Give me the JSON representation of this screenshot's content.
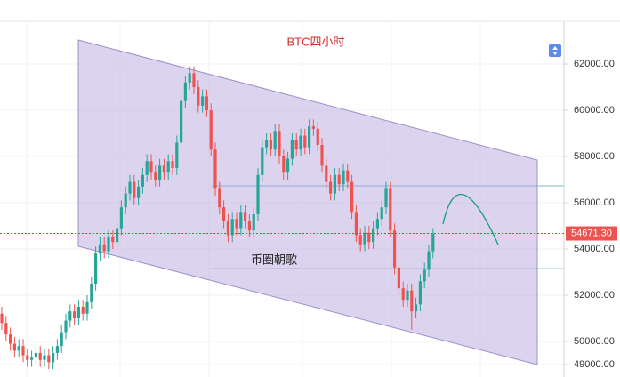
{
  "chart_data": {
    "type": "candlestick",
    "title": "BTC四小时",
    "annotation": "币圈朝歌",
    "up_color": "#26a69a",
    "down_color": "#ef5350",
    "ylim": [
      48460,
      64770
    ],
    "yticks": [
      {
        "value": 49000,
        "label": "49000.00"
      },
      {
        "value": 50000,
        "label": "50000.00"
      },
      {
        "value": 52000,
        "label": "52000.00"
      },
      {
        "value": 54000,
        "label": "54000.00"
      },
      {
        "value": 56000,
        "label": "56000.00"
      },
      {
        "value": 58000,
        "label": "58000.00"
      },
      {
        "value": 60000,
        "label": "60000.00"
      },
      {
        "value": 62000,
        "label": "62000.00"
      }
    ],
    "last_price": {
      "value": 54671.3,
      "label": "54671.30"
    },
    "price_lines": [
      56730,
      53150
    ],
    "open": [
      51200,
      50800,
      50300,
      49900,
      49600,
      49800,
      49400,
      49200,
      49300,
      49500,
      49200,
      49400,
      49100,
      49500,
      49800,
      50400,
      50900,
      51300,
      51000,
      51500,
      51200,
      51700,
      52500,
      53800,
      54200,
      53900,
      54500,
      54300,
      54900,
      55800,
      56400,
      56900,
      56200,
      56700,
      57200,
      57800,
      57300,
      57000,
      57600,
      57300,
      57800,
      57500,
      58600,
      60400,
      61200,
      61600,
      61000,
      60200,
      60600,
      60000,
      58300,
      56600,
      55800,
      55200,
      54600,
      55300,
      54900,
      55600,
      55200,
      54800,
      55500,
      57200,
      58400,
      58700,
      58300,
      59100,
      58000,
      57300,
      57900,
      58700,
      58300,
      58900,
      58400,
      59300,
      59200,
      58500,
      57600,
      56900,
      56400,
      57200,
      56800,
      57400,
      56900,
      55600,
      54600,
      54200,
      54700,
      54300,
      54900,
      55300,
      55800,
      56600,
      54800,
      53200,
      52300,
      51800,
      52200,
      51300,
      51600,
      52600,
      53100,
      53900
    ],
    "high": [
      51500,
      51100,
      50600,
      50200,
      50100,
      50100,
      49700,
      49600,
      49800,
      49800,
      49700,
      49700,
      49800,
      50100,
      50700,
      51200,
      51600,
      51600,
      51800,
      51800,
      52000,
      52800,
      54100,
      54500,
      54500,
      54800,
      54800,
      55200,
      56100,
      56700,
      57200,
      57200,
      57000,
      57500,
      58100,
      58100,
      57600,
      57900,
      57900,
      58100,
      58100,
      58900,
      60700,
      61500,
      61900,
      61900,
      61300,
      60900,
      60900,
      60300,
      58600,
      56900,
      56100,
      55500,
      55600,
      55600,
      55900,
      55900,
      55500,
      55800,
      57500,
      58700,
      59000,
      59000,
      59400,
      59400,
      58300,
      58200,
      59000,
      59000,
      59200,
      59200,
      59600,
      59600,
      59500,
      58800,
      57900,
      57200,
      57500,
      57500,
      57700,
      57700,
      57200,
      55900,
      54900,
      55000,
      55000,
      55200,
      55600,
      56100,
      56900,
      56900,
      55100,
      53500,
      52600,
      52500,
      52500,
      51900,
      52900,
      53400,
      54200,
      54900
    ],
    "low": [
      50500,
      50000,
      49600,
      49300,
      49300,
      49100,
      48900,
      48900,
      49000,
      48900,
      48900,
      48800,
      48800,
      49200,
      49500,
      50100,
      50600,
      50700,
      50700,
      50900,
      50900,
      51400,
      52200,
      53500,
      53600,
      53600,
      54000,
      54000,
      54600,
      55500,
      56100,
      55900,
      55900,
      56400,
      56900,
      57000,
      56700,
      56700,
      57000,
      57000,
      57200,
      57200,
      58300,
      60100,
      60900,
      60700,
      59900,
      59900,
      59700,
      58000,
      56300,
      55500,
      54900,
      54300,
      54300,
      54600,
      54600,
      54900,
      54500,
      54500,
      55200,
      56900,
      58100,
      58000,
      58000,
      57700,
      57000,
      57000,
      57600,
      58000,
      58000,
      58100,
      58100,
      58900,
      58200,
      57300,
      56600,
      56100,
      56100,
      56500,
      56500,
      56600,
      55300,
      54300,
      53900,
      53900,
      54000,
      54000,
      54600,
      55000,
      55500,
      54500,
      52900,
      52000,
      51500,
      51500,
      50500,
      51000,
      51300,
      52300,
      52800,
      53600
    ],
    "close": [
      50800,
      50300,
      49900,
      49600,
      49800,
      49400,
      49200,
      49300,
      49500,
      49200,
      49400,
      49100,
      49500,
      49800,
      50400,
      50900,
      51300,
      51000,
      51500,
      51200,
      51700,
      52500,
      53800,
      54200,
      53900,
      54500,
      54300,
      54900,
      55800,
      56400,
      56900,
      56200,
      56700,
      57200,
      57800,
      57300,
      57000,
      57600,
      57300,
      57800,
      57500,
      58600,
      60400,
      61200,
      61600,
      61000,
      60200,
      60600,
      60000,
      58300,
      56600,
      55800,
      55200,
      54600,
      55300,
      54900,
      55600,
      55200,
      54800,
      55500,
      57200,
      58400,
      58700,
      58300,
      59100,
      58000,
      57300,
      57900,
      58700,
      58300,
      58900,
      58400,
      59300,
      59200,
      58500,
      57600,
      56900,
      56400,
      57200,
      56800,
      57400,
      56900,
      55600,
      54600,
      54200,
      54700,
      54300,
      54900,
      55300,
      55800,
      56600,
      54800,
      53200,
      52300,
      51800,
      52200,
      51300,
      51600,
      52600,
      53100,
      53900,
      54671.3
    ]
  }
}
